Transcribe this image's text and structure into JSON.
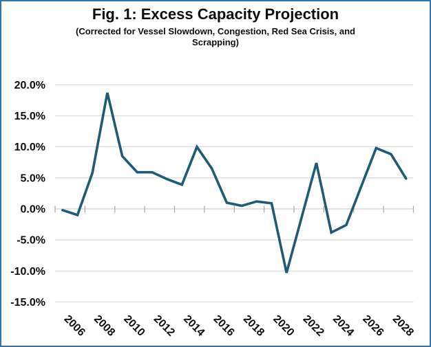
{
  "chart_data": {
    "type": "line",
    "title": "Fig. 1: Excess Capacity Projection",
    "subtitle_line1": "(Corrected for Vessel Slowdown, Congestion, Red Sea Crisis, and",
    "subtitle_line2": "Scrapping)",
    "x": [
      2005,
      2006,
      2007,
      2008,
      2009,
      2010,
      2011,
      2012,
      2013,
      2014,
      2015,
      2016,
      2017,
      2018,
      2019,
      2020,
      2021,
      2022,
      2023,
      2024,
      2025,
      2026,
      2027,
      2028
    ],
    "series": [
      {
        "name": "Excess capacity (%)",
        "values": [
          -0.2,
          -1.0,
          5.8,
          18.7,
          8.5,
          5.9,
          5.9,
          4.8,
          3.9,
          10.0,
          6.5,
          1.0,
          0.5,
          1.2,
          0.9,
          -10.3,
          -1.5,
          7.4,
          -3.8,
          -2.6,
          3.6,
          9.8,
          8.8,
          4.9
        ]
      }
    ],
    "x_tick_labels": [
      "2006",
      "2008",
      "2010",
      "2012",
      "2014",
      "2016",
      "2018",
      "2020",
      "2022",
      "2024",
      "2026",
      "2028"
    ],
    "y_tick_labels": [
      "20.0%",
      "15.0%",
      "10.0%",
      "5.0%",
      "0.0%",
      "-5.0%",
      "-10.0%",
      "-15.0%"
    ],
    "y_tick_values": [
      20,
      15,
      10,
      5,
      0,
      -5,
      -10,
      -15
    ],
    "ylim": [
      -15,
      20
    ],
    "xlabel": "",
    "ylabel": "",
    "grid": true,
    "legend": "none",
    "line_color": "#1e5b74"
  },
  "colors": {
    "frame_border": "#2e75b6",
    "gridline": "#d9d9d9",
    "axis_line": "#cfcfcf",
    "tick": "#a6a6a6",
    "text": "#0d0d0d",
    "background": "#ffffff"
  }
}
